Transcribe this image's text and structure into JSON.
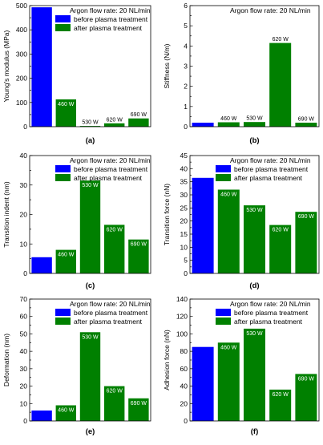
{
  "legend": {
    "flow_rate": "Argon flow rate: 20 NL/min",
    "before": "before plasma treatment",
    "after": "after plasma treatment"
  },
  "colors": {
    "before": "#0000ff",
    "after": "#008000",
    "axis": "#000000"
  },
  "chart_data": [
    {
      "type": "bar",
      "panel_label": "(a)",
      "ylabel": "Young's modulus (MPa)",
      "ylim": [
        0,
        500
      ],
      "yticks": [
        0,
        100,
        200,
        300,
        400,
        500
      ],
      "categories": [
        "before",
        "460 W",
        "530 W",
        "620 W",
        "690 W"
      ],
      "values": [
        493,
        113,
        3,
        14,
        34
      ],
      "bar_labels": [
        "",
        "460 W",
        "530 W",
        "620 W",
        "690 W"
      ],
      "label_positions": [
        "",
        "inside",
        "above",
        "above",
        "above"
      ],
      "legend": "full"
    },
    {
      "type": "bar",
      "panel_label": "(b)",
      "ylabel": "Stiffness (N/m)",
      "ylim": [
        0,
        6
      ],
      "yticks": [
        0,
        1,
        2,
        3,
        4,
        5,
        6
      ],
      "categories": [
        "before",
        "460 W",
        "530 W",
        "620 W",
        "690 W"
      ],
      "values": [
        0.2,
        0.22,
        0.23,
        4.15,
        0.2
      ],
      "bar_labels": [
        "",
        "460 W",
        "530 W",
        "620 W",
        "690 W"
      ],
      "label_positions": [
        "",
        "above",
        "above",
        "above",
        "above"
      ],
      "legend": "title-only"
    },
    {
      "type": "bar",
      "panel_label": "(c)",
      "ylabel": "Transition indent (nm)",
      "ylim": [
        0,
        40
      ],
      "yticks": [
        0,
        10,
        20,
        30,
        40
      ],
      "categories": [
        "before",
        "460 W",
        "530 W",
        "620 W",
        "690 W"
      ],
      "values": [
        5.5,
        8,
        31.5,
        16.5,
        11.5
      ],
      "bar_labels": [
        "",
        "460 W",
        "530 W",
        "620 W",
        "690 W"
      ],
      "label_positions": [
        "",
        "inside",
        "inside",
        "inside",
        "inside"
      ],
      "legend": "full"
    },
    {
      "type": "bar",
      "panel_label": "(d)",
      "ylabel": "Transition force (nN)",
      "ylim": [
        0,
        45
      ],
      "yticks": [
        0,
        5,
        10,
        15,
        20,
        25,
        30,
        35,
        40,
        45
      ],
      "categories": [
        "before",
        "460 W",
        "530 W",
        "620 W",
        "690 W"
      ],
      "values": [
        36.5,
        32,
        26,
        18.5,
        23.5
      ],
      "bar_labels": [
        "",
        "460 W",
        "530 W",
        "620 W",
        "690 W"
      ],
      "label_positions": [
        "",
        "inside",
        "inside",
        "inside",
        "inside"
      ],
      "legend": "full"
    },
    {
      "type": "bar",
      "panel_label": "(e)",
      "ylabel": "Deformation (nm)",
      "ylim": [
        0,
        70
      ],
      "yticks": [
        0,
        10,
        20,
        30,
        40,
        50,
        60,
        70
      ],
      "categories": [
        "before",
        "460 W",
        "530 W",
        "620 W",
        "690 W"
      ],
      "values": [
        6,
        9,
        51,
        20,
        13
      ],
      "bar_labels": [
        "",
        "460 W",
        "530 W",
        "620 W",
        "690 W"
      ],
      "label_positions": [
        "",
        "inside",
        "inside",
        "inside",
        "inside"
      ],
      "legend": "full"
    },
    {
      "type": "bar",
      "panel_label": "(f)",
      "ylabel": "Adhesion force (nN)",
      "ylim": [
        0,
        140
      ],
      "yticks": [
        0,
        20,
        40,
        60,
        80,
        100,
        120,
        140
      ],
      "categories": [
        "before",
        "460 W",
        "530 W",
        "620 W",
        "690 W"
      ],
      "values": [
        85,
        90,
        106,
        36,
        54
      ],
      "bar_labels": [
        "",
        "460 W",
        "530 W",
        "620 W",
        "690 W"
      ],
      "label_positions": [
        "",
        "inside",
        "inside",
        "inside",
        "inside"
      ],
      "legend": "full"
    }
  ]
}
